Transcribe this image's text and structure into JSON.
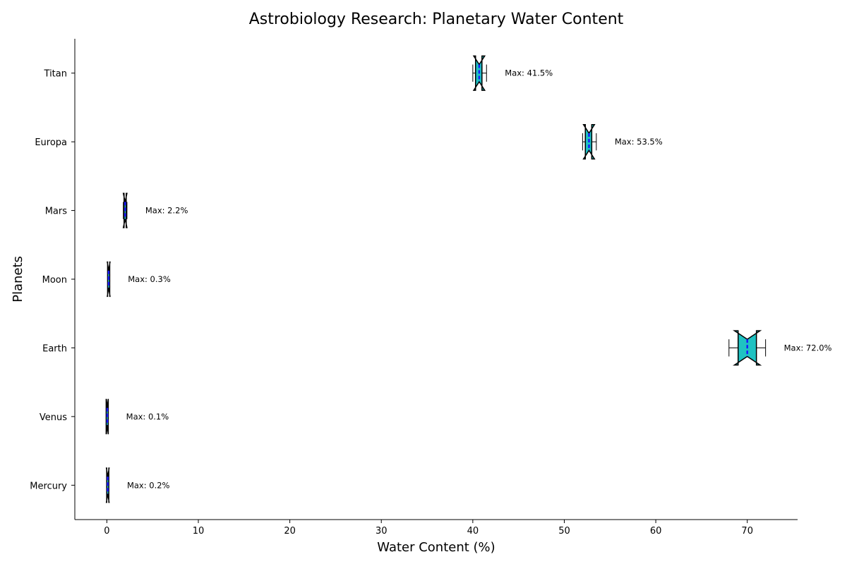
{
  "chart_data": {
    "type": "boxplot",
    "orientation": "horizontal",
    "notched": true,
    "title": "Astrobiology Research: Planetary Water Content",
    "xlabel": "Water Content (%)",
    "ylabel": "Planets",
    "xlim": [
      -3.5,
      75.5
    ],
    "xticks": [
      0,
      10,
      20,
      30,
      40,
      50,
      60,
      70
    ],
    "grid": false,
    "colors": {
      "box_fill": [
        "#1fc2c2",
        "#1fc2c2",
        "#1fc2c2",
        "#1fc2c2",
        "#1fc2c2",
        "#1fc2c2",
        "#1fc2c2"
      ],
      "median": "#1a1aff",
      "whisker": "#000000"
    },
    "categories": [
      "Mercury",
      "Venus",
      "Earth",
      "Moon",
      "Mars",
      "Europa",
      "Titan"
    ],
    "boxes": [
      {
        "name": "Mercury",
        "whislo": 0.0,
        "q1": 0.05,
        "med": 0.1,
        "q3": 0.15,
        "whishi": 0.2,
        "notch_lo": -0.05,
        "notch_hi": 0.25
      },
      {
        "name": "Venus",
        "whislo": 0.0,
        "q1": 0.0,
        "med": 0.05,
        "q3": 0.08,
        "whishi": 0.1,
        "notch_lo": -0.05,
        "notch_hi": 0.15
      },
      {
        "name": "Earth",
        "whislo": 68.0,
        "q1": 69.0,
        "med": 70.0,
        "q3": 71.0,
        "whishi": 72.0,
        "notch_lo": 68.6,
        "notch_hi": 71.4
      },
      {
        "name": "Moon",
        "whislo": 0.1,
        "q1": 0.15,
        "med": 0.2,
        "q3": 0.25,
        "whishi": 0.3,
        "notch_lo": 0.05,
        "notch_hi": 0.35
      },
      {
        "name": "Mars",
        "whislo": 1.8,
        "q1": 1.9,
        "med": 2.0,
        "q3": 2.1,
        "whishi": 2.2,
        "notch_lo": 1.8,
        "notch_hi": 2.2
      },
      {
        "name": "Europa",
        "whislo": 52.0,
        "q1": 52.3,
        "med": 52.7,
        "q3": 53.0,
        "whishi": 53.5,
        "notch_lo": 52.1,
        "notch_hi": 53.3
      },
      {
        "name": "Titan",
        "whislo": 40.0,
        "q1": 40.3,
        "med": 40.7,
        "q3": 41.0,
        "whishi": 41.5,
        "notch_lo": 40.1,
        "notch_hi": 41.3
      }
    ],
    "annotations": [
      "Max: 0.2%",
      "Max: 0.1%",
      "Max: 72.0%",
      "Max: 0.3%",
      "Max: 2.2%",
      "Max: 53.5%",
      "Max: 41.5%"
    ]
  }
}
